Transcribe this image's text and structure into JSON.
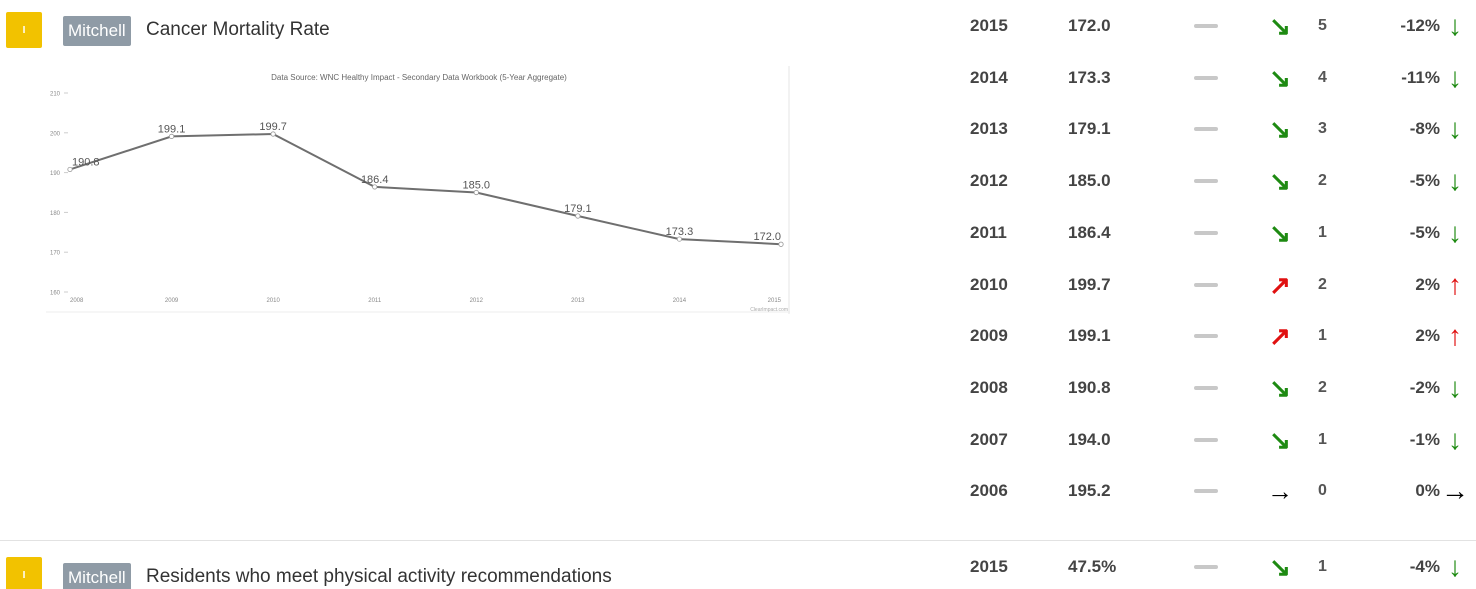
{
  "indicators": [
    {
      "badge": "I",
      "location": "Mitchell",
      "title": "Cancer Mortality Rate",
      "history": [
        {
          "year": "2015",
          "value": "172.0",
          "trend": "down",
          "arrow": "↘",
          "count": "5",
          "pct": "-12%",
          "pct_arrow": "↓"
        },
        {
          "year": "2014",
          "value": "173.3",
          "trend": "down",
          "arrow": "↘",
          "count": "4",
          "pct": "-11%",
          "pct_arrow": "↓"
        },
        {
          "year": "2013",
          "value": "179.1",
          "trend": "down",
          "arrow": "↘",
          "count": "3",
          "pct": "-8%",
          "pct_arrow": "↓"
        },
        {
          "year": "2012",
          "value": "185.0",
          "trend": "down",
          "arrow": "↘",
          "count": "2",
          "pct": "-5%",
          "pct_arrow": "↓"
        },
        {
          "year": "2011",
          "value": "186.4",
          "trend": "down",
          "arrow": "↘",
          "count": "1",
          "pct": "-5%",
          "pct_arrow": "↓"
        },
        {
          "year": "2010",
          "value": "199.7",
          "trend": "up",
          "arrow": "↗",
          "count": "2",
          "pct": "2%",
          "pct_arrow": "↑"
        },
        {
          "year": "2009",
          "value": "199.1",
          "trend": "up",
          "arrow": "↗",
          "count": "1",
          "pct": "2%",
          "pct_arrow": "↑"
        },
        {
          "year": "2008",
          "value": "190.8",
          "trend": "down",
          "arrow": "↘",
          "count": "2",
          "pct": "-2%",
          "pct_arrow": "↓"
        },
        {
          "year": "2007",
          "value": "194.0",
          "trend": "down",
          "arrow": "↘",
          "count": "1",
          "pct": "-1%",
          "pct_arrow": "↓"
        },
        {
          "year": "2006",
          "value": "195.2",
          "trend": "flat",
          "arrow": "→",
          "count": "0",
          "pct": "0%",
          "pct_arrow": "→"
        }
      ]
    },
    {
      "badge": "I",
      "location": "Mitchell",
      "title": "Residents who meet physical activity recommendations",
      "history": [
        {
          "year": "2015",
          "value": "47.5%",
          "trend": "down",
          "arrow": "↘",
          "count": "1",
          "pct": "-4%",
          "pct_arrow": "↓"
        }
      ]
    }
  ],
  "chart_data": {
    "type": "line",
    "title": "Data Source: WNC Healthy Impact - Secondary Data Workbook (5-Year Aggregate)",
    "xlabel": "",
    "ylabel": "",
    "x": [
      "2008",
      "2009",
      "2010",
      "2011",
      "2012",
      "2013",
      "2014",
      "2015"
    ],
    "values": [
      190.8,
      199.1,
      199.7,
      186.4,
      185.0,
      179.1,
      173.3,
      172.0
    ],
    "data_labels": [
      "190.8",
      "199.1",
      "199.7",
      "186.4",
      "185.0",
      "179.1",
      "173.3",
      "172.0"
    ],
    "y_ticks": [
      160,
      170,
      180,
      190,
      200,
      210
    ],
    "ylim": [
      160,
      210
    ],
    "grid": false,
    "line_color": "#6f6f6f",
    "credit": "ClearImpact.com"
  },
  "colors": {
    "down": "#1e8a12",
    "up": "#e01010",
    "flat": "#000000",
    "badge": "#f2c200",
    "tag": "#8f9ba6"
  }
}
